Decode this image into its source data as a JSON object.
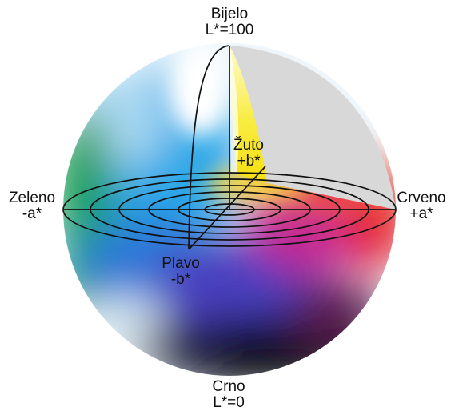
{
  "labels": {
    "top": {
      "line1": "Bijelo",
      "line2": "L*=100"
    },
    "bottom": {
      "line1": "Crno",
      "line2": "L*=0"
    },
    "left": {
      "line1": "Zeleno",
      "line2": "-a*"
    },
    "right": {
      "line1": "Crveno",
      "line2": "+a*"
    },
    "yellow": {
      "line1": "Žuto",
      "line2": "+b*"
    },
    "blue": {
      "line1": "Plavo",
      "line2": "-b*"
    }
  },
  "colors": {
    "white": "#ffffff",
    "black": "#0a0a12",
    "green": "#10a050",
    "red": "#e8202a",
    "yellow": "#f5e81a",
    "blue": "#1888d8",
    "cyan": "#30b0e8",
    "magenta": "#c02890",
    "cutaway": "#d8d8d8",
    "outline": "#111111"
  }
}
